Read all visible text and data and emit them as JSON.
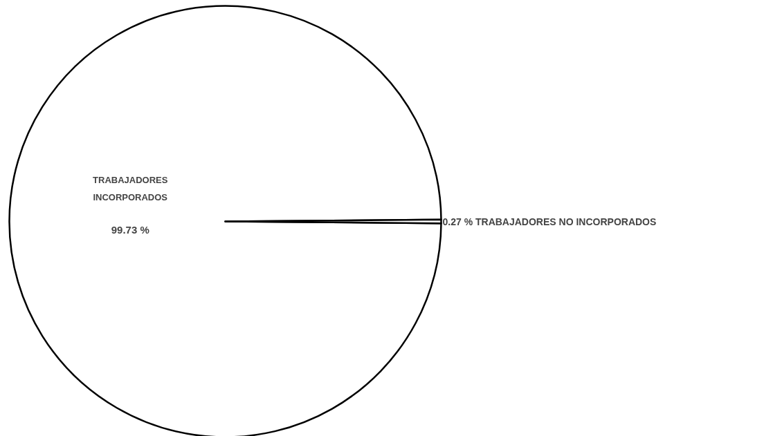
{
  "chart_data": {
    "type": "pie",
    "categories": [
      "TRABAJADORES INCORPORADOS",
      "TRABAJADORES NO INCORPORADOS"
    ],
    "values": [
      99.73,
      0.27
    ],
    "colors": [
      "#ffffff",
      "#ffffff"
    ],
    "value_labels": [
      "99.73 %",
      "0.27 %"
    ]
  }
}
